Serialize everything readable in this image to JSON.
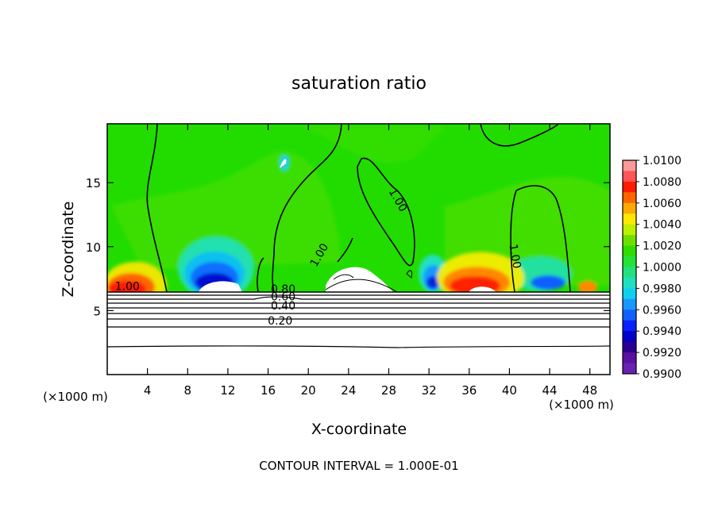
{
  "chart_data": {
    "type": "heatmap",
    "title": "saturation ratio",
    "xlabel": "X-coordinate",
    "ylabel": "Z-coordinate",
    "x_units": "(×1000 m)",
    "y_units": "(×1000 m)",
    "xlim": [
      0,
      50
    ],
    "ylim": [
      0,
      19.6
    ],
    "x_ticks": [
      4,
      8,
      12,
      16,
      20,
      24,
      28,
      32,
      36,
      40,
      44,
      48
    ],
    "y_ticks": [
      5,
      10,
      15
    ],
    "colorbar": {
      "labels": [
        "1.0100",
        "1.0080",
        "1.0060",
        "1.0040",
        "1.0020",
        "1.0000",
        "0.9980",
        "0.9960",
        "0.9940",
        "0.9920",
        "0.9900"
      ],
      "colors": [
        "#ff9999",
        "#ff5555",
        "#ff1a00",
        "#ff6600",
        "#ffaa00",
        "#ffe800",
        "#bfef00",
        "#6ee000",
        "#2ede00",
        "#22e238",
        "#22e080",
        "#1ee0c0",
        "#10d0f0",
        "#1898ff",
        "#1060ff",
        "#0a20ff",
        "#0000c8",
        "#2a0090",
        "#5a10a0",
        "#6a20b0"
      ]
    },
    "contour_labels": [
      {
        "text": "1.00",
        "x": 2,
        "z": 6.6
      },
      {
        "text": "1.00",
        "x": 28.6,
        "z": 13.5
      },
      {
        "text": "1.00",
        "x": 21.4,
        "z": 9.2
      },
      {
        "text": "1.00",
        "x": 40.2,
        "z": 9.2
      },
      {
        "text": "0.80",
        "x": 17.5,
        "z": 6.4
      },
      {
        "text": "0.60",
        "x": 17.5,
        "z": 5.8
      },
      {
        "text": "0.40",
        "x": 17.5,
        "z": 5.1
      },
      {
        "text": "0.20",
        "x": 17.2,
        "z": 3.9
      }
    ],
    "footer": "CONTOUR INTERVAL = 1.000E-01"
  }
}
